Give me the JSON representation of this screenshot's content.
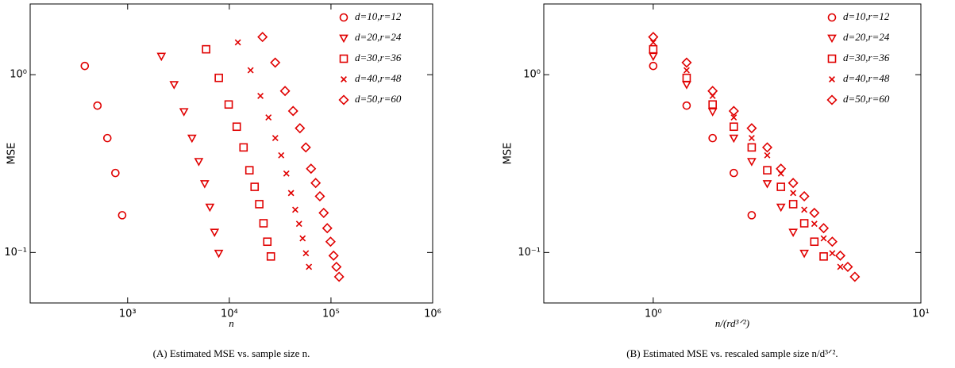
{
  "chart_data": [
    {
      "type": "scatter",
      "xscale": "log",
      "yscale": "log",
      "xlabel": "n",
      "ylabel": "MSE",
      "caption": "(A) Estimated MSE vs. sample size n.",
      "xlim": [
        110,
        1000000
      ],
      "ylim": [
        0.052,
        2.5
      ],
      "xticks": [
        {
          "value": 1000,
          "label": "10³"
        },
        {
          "value": 10000,
          "label": "10⁴"
        },
        {
          "value": 100000,
          "label": "10⁵"
        },
        {
          "value": 1000000,
          "label": "10⁶"
        }
      ],
      "yticks": [
        {
          "value": 1,
          "label": "10⁰"
        },
        {
          "value": 0.1,
          "label": "10⁻¹"
        }
      ],
      "legend": "upper right",
      "series": [
        {
          "name": "d=10,r=12",
          "color": "#e00000",
          "marker": "circle",
          "x": [
            379,
            505,
            632,
            758,
            884
          ],
          "values": [
            1.12,
            0.67,
            0.44,
            0.28,
            0.162
          ]
        },
        {
          "name": "d=20,r=24",
          "color": "#e00000",
          "marker": "triangle-down",
          "x": [
            2147,
            2863,
            3578,
            4294,
            5010,
            5725,
            6441,
            7157,
            7872
          ],
          "values": [
            1.27,
            0.88,
            0.62,
            0.44,
            0.325,
            0.244,
            0.18,
            0.13,
            0.099
          ]
        },
        {
          "name": "d=30,r=36",
          "color": "#e00000",
          "marker": "square",
          "x": [
            5915,
            7887,
            9858,
            11830,
            13802,
            15773,
            17745,
            19717,
            21688,
            23660,
            25632
          ],
          "values": [
            1.39,
            0.96,
            0.68,
            0.51,
            0.39,
            0.29,
            0.234,
            0.187,
            0.146,
            0.115,
            0.095
          ]
        },
        {
          "name": "d=40,r=48",
          "color": "#e00000",
          "marker": "x",
          "x": [
            12144,
            16192,
            20240,
            24288,
            28336,
            32384,
            36432,
            40480,
            44528,
            48576,
            52624,
            56672,
            60720
          ],
          "values": [
            1.52,
            1.06,
            0.76,
            0.575,
            0.44,
            0.352,
            0.278,
            0.216,
            0.174,
            0.145,
            0.12,
            0.099,
            0.083
          ]
        },
        {
          "name": "d=50,r=60",
          "color": "#e00000",
          "marker": "diamond",
          "x": [
            21213,
            28284,
            35355,
            42426,
            49497,
            56568,
            63639,
            70710,
            77781,
            84852,
            91923,
            98994,
            106065,
            113136,
            120207
          ],
          "values": [
            1.63,
            1.17,
            0.81,
            0.625,
            0.5,
            0.39,
            0.296,
            0.246,
            0.207,
            0.167,
            0.137,
            0.115,
            0.096,
            0.083,
            0.073
          ]
        }
      ]
    },
    {
      "type": "scatter",
      "xscale": "log",
      "yscale": "log",
      "xlabel": "n/(rd³ᐟ²)",
      "ylabel": "MSE",
      "caption": "(B) Estimated MSE vs. rescaled sample size n/d³ᐟ².",
      "xlim": [
        0.39,
        10
      ],
      "ylim": [
        0.052,
        2.5
      ],
      "xticks": [
        {
          "value": 1,
          "label": "10⁰"
        },
        {
          "value": 10,
          "label": "10¹"
        }
      ],
      "yticks": [
        {
          "value": 1,
          "label": "10⁰"
        },
        {
          "value": 0.1,
          "label": "10⁻¹"
        }
      ],
      "legend": "upper right",
      "series": [
        {
          "name": "d=10,r=12",
          "color": "#e00000",
          "marker": "circle",
          "x": [
            1,
            1.333,
            1.667,
            2,
            2.333
          ],
          "values": [
            1.12,
            0.67,
            0.44,
            0.28,
            0.162
          ]
        },
        {
          "name": "d=20,r=24",
          "color": "#e00000",
          "marker": "triangle-down",
          "x": [
            1,
            1.333,
            1.667,
            2,
            2.333,
            2.667,
            3,
            3.333,
            3.667
          ],
          "values": [
            1.27,
            0.88,
            0.62,
            0.44,
            0.325,
            0.244,
            0.18,
            0.13,
            0.099
          ]
        },
        {
          "name": "d=30,r=36",
          "color": "#e00000",
          "marker": "square",
          "x": [
            1,
            1.333,
            1.667,
            2,
            2.333,
            2.667,
            3,
            3.333,
            3.667,
            4,
            4.333
          ],
          "values": [
            1.39,
            0.96,
            0.68,
            0.51,
            0.39,
            0.29,
            0.234,
            0.187,
            0.146,
            0.115,
            0.095
          ]
        },
        {
          "name": "d=40,r=48",
          "color": "#e00000",
          "marker": "x",
          "x": [
            1,
            1.333,
            1.667,
            2,
            2.333,
            2.667,
            3,
            3.333,
            3.667,
            4,
            4.333,
            4.667,
            5
          ],
          "values": [
            1.52,
            1.06,
            0.76,
            0.575,
            0.44,
            0.352,
            0.278,
            0.216,
            0.174,
            0.145,
            0.12,
            0.099,
            0.083
          ]
        },
        {
          "name": "d=50,r=60",
          "color": "#e00000",
          "marker": "diamond",
          "x": [
            1,
            1.333,
            1.667,
            2,
            2.333,
            2.667,
            3,
            3.333,
            3.667,
            4,
            4.333,
            4.667,
            5,
            5.333,
            5.667
          ],
          "values": [
            1.63,
            1.17,
            0.81,
            0.625,
            0.5,
            0.39,
            0.296,
            0.246,
            0.207,
            0.167,
            0.137,
            0.115,
            0.096,
            0.083,
            0.073
          ]
        }
      ]
    }
  ]
}
